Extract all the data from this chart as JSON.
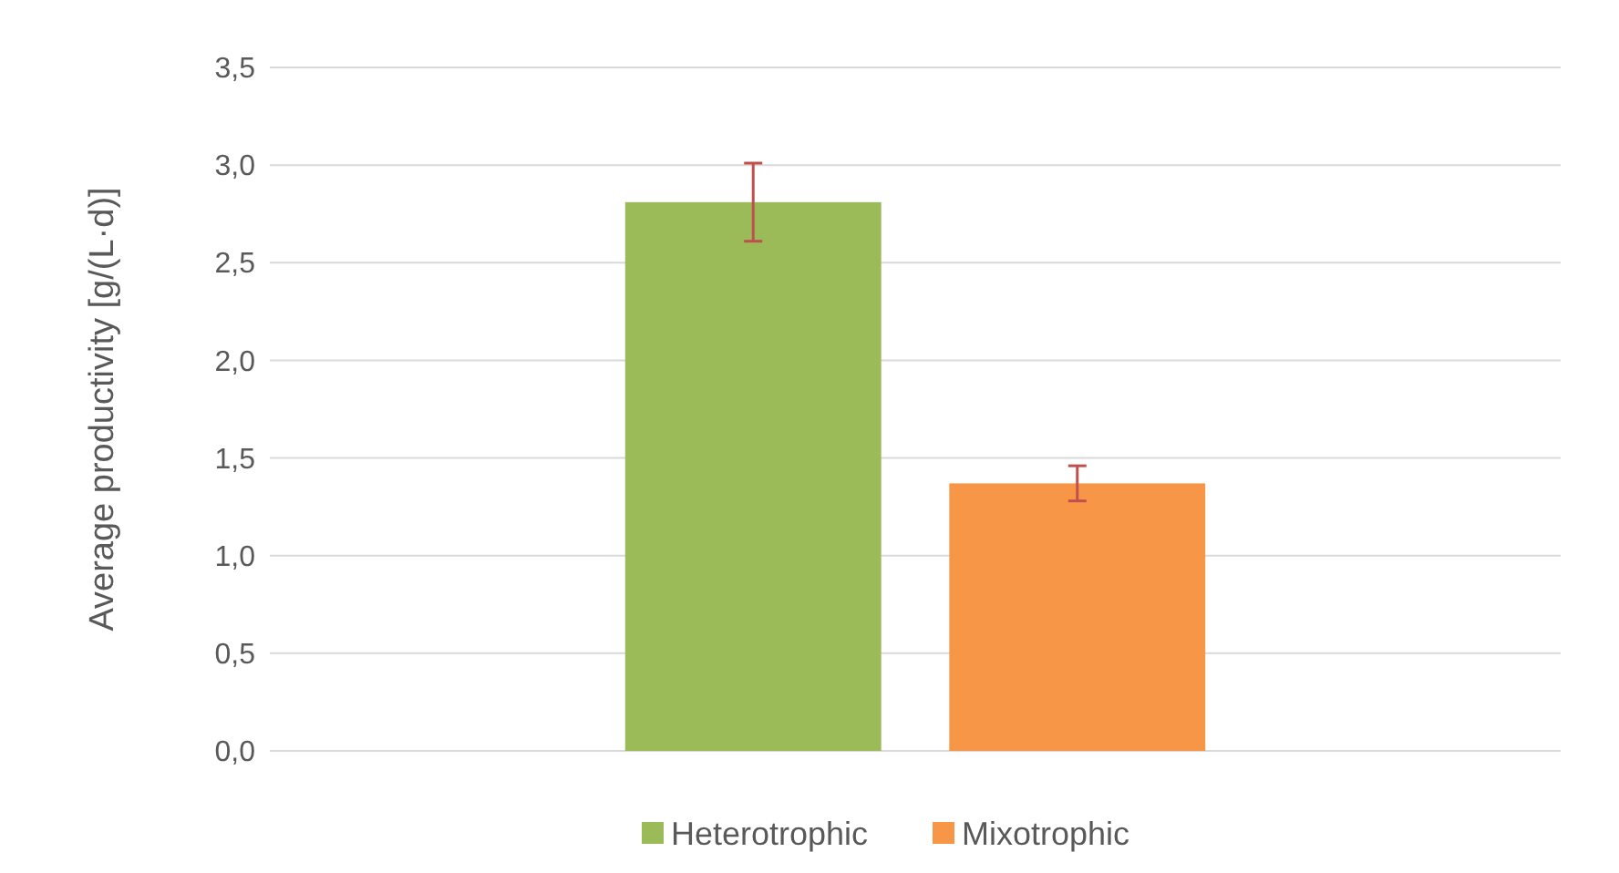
{
  "chart_data": {
    "type": "bar",
    "ylabel": "Average productivity [g/(L·d)]",
    "categories": [
      null
    ],
    "series": [
      {
        "name": "Heterotrophic",
        "color": "#9bbb59",
        "values": [
          2.81
        ],
        "errors": [
          0.2
        ]
      },
      {
        "name": "Mixotrophic",
        "color": "#f79646",
        "values": [
          1.37
        ],
        "errors": [
          0.09
        ]
      }
    ],
    "ylim": [
      0,
      3.5
    ],
    "yticks": [
      {
        "value": 0,
        "label": "0,0"
      },
      {
        "value": 0.5,
        "label": "0,5"
      },
      {
        "value": 1,
        "label": "1,0"
      },
      {
        "value": 1.5,
        "label": "1,5"
      },
      {
        "value": 2,
        "label": "2,0"
      },
      {
        "value": 2.5,
        "label": "2,5"
      },
      {
        "value": 3,
        "label": "3,0"
      },
      {
        "value": 3.5,
        "label": "3,5"
      }
    ],
    "grid": "y",
    "legend": "bottom"
  }
}
